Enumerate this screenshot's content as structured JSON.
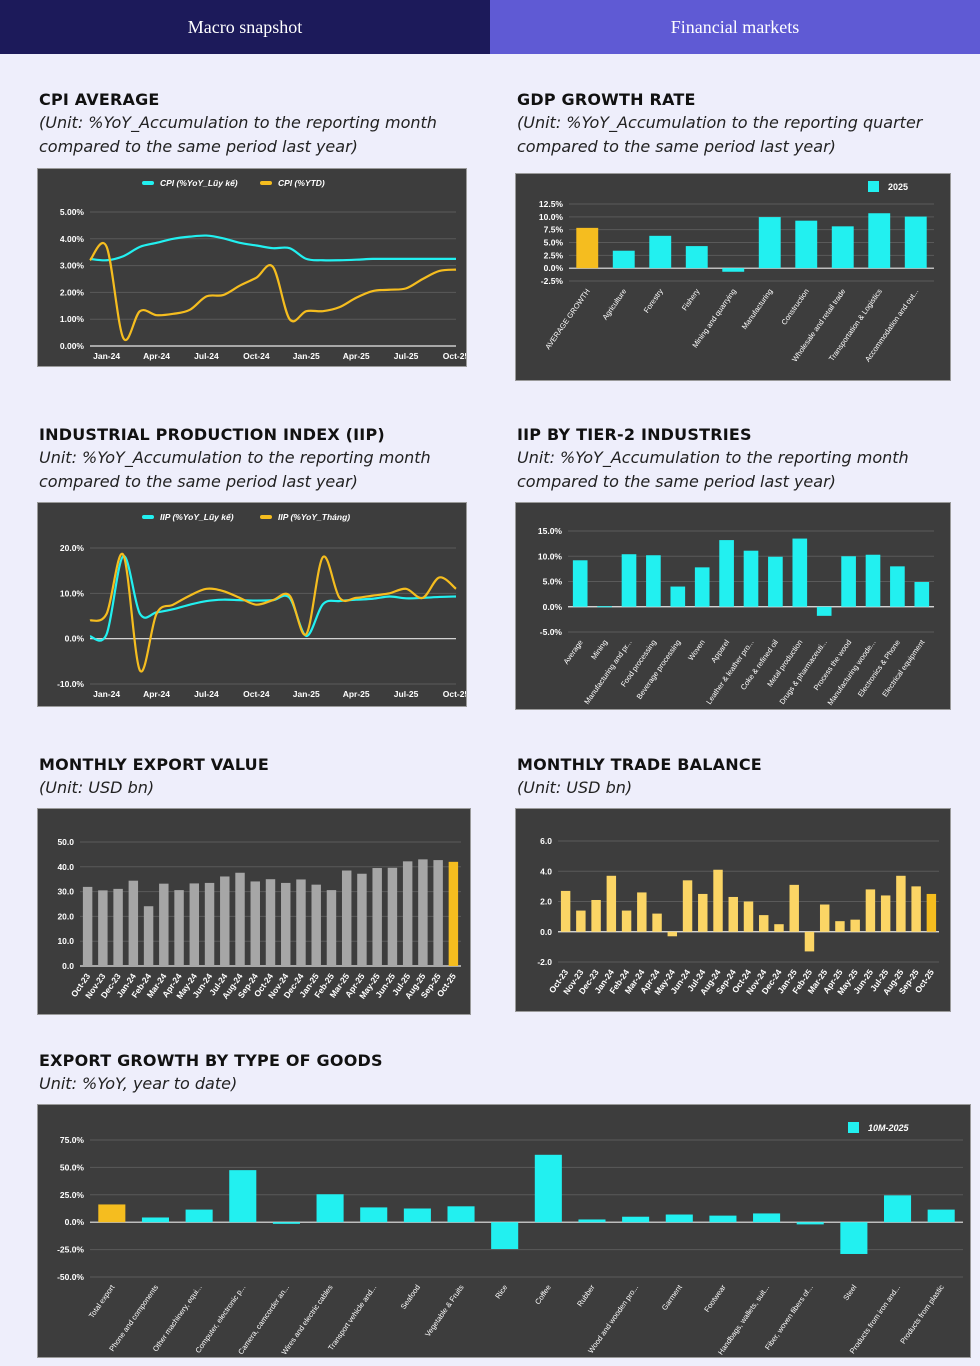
{
  "tabs": [
    {
      "label": "Macro snapshot"
    },
    {
      "label": "Financial markets"
    }
  ],
  "sections": {
    "cpi": {
      "title": "CPI AVERAGE",
      "unit": "(Unit: %YoY_Accumulation to the reporting month\ncompared to the same period last year)"
    },
    "gdp": {
      "title": "GDP GROWTH RATE",
      "unit": "(Unit: %YoY_Accumulation to the reporting quarter\ncompared to the same period last year)"
    },
    "iip": {
      "title": "INDUSTRIAL PRODUCTION INDEX (IIP)",
      "unit": "Unit: %YoY_Accumulation to the reporting month\ncompared to the same period last year)"
    },
    "iip2": {
      "title": "IIP BY TIER-2 INDUSTRIES",
      "unit": "Unit: %YoY_Accumulation to the reporting month\ncompared to the same period last year)"
    },
    "export": {
      "title": "MONTHLY EXPORT VALUE",
      "unit": "(Unit: USD bn)"
    },
    "trade": {
      "title": "MONTHLY TRADE BALANCE",
      "unit": "(Unit: USD bn)"
    },
    "goods": {
      "title": "EXPORT GROWTH BY TYPE OF GOODS",
      "unit": "Unit: %YoY, year to date)"
    }
  },
  "colors": {
    "cyan": "#22f0f0",
    "yellow": "#f5bd1f",
    "gray": "#a6a6a6",
    "lightYellow": "#fbd565",
    "panel": "#3d3d3d"
  },
  "chart_data": [
    {
      "id": "cpi",
      "type": "line",
      "x": [
        "Dec-23",
        "Jan-24",
        "Feb-24",
        "Mar-24",
        "Apr-24",
        "May-24",
        "Jun-24",
        "Jul-24",
        "Aug-24",
        "Sep-24",
        "Oct-24",
        "Nov-24",
        "Dec-24",
        "Jan-25",
        "Feb-25",
        "Mar-25",
        "Apr-25",
        "May-25",
        "Jun-25",
        "Jul-25",
        "Aug-25",
        "Sep-25",
        "Oct-25"
      ],
      "xticks": [
        "Jan-24",
        "Apr-24",
        "Jul-24",
        "Oct-24",
        "Jan-25",
        "Apr-25",
        "Jul-25",
        "Oct-25"
      ],
      "yticks": [
        "5.00%",
        "4.00%",
        "3.00%",
        "2.00%",
        "1.00%",
        "0.00%"
      ],
      "ylim": [
        0,
        5
      ],
      "series": [
        {
          "name": "CPI (%YoY_Lũy kế)",
          "color": "cyan",
          "values": [
            3.25,
            3.2,
            3.35,
            3.7,
            3.85,
            4.0,
            4.08,
            4.12,
            4.02,
            3.85,
            3.75,
            3.65,
            3.65,
            3.25,
            3.2,
            3.2,
            3.22,
            3.25,
            3.25,
            3.25,
            3.25,
            3.25,
            3.25
          ]
        },
        {
          "name": "CPI (%YTD)",
          "color": "yellow",
          "values": [
            3.2,
            3.7,
            0.3,
            1.3,
            1.15,
            1.2,
            1.35,
            1.85,
            1.9,
            2.25,
            2.55,
            2.95,
            1.0,
            1.3,
            1.3,
            1.45,
            1.8,
            2.05,
            2.1,
            2.15,
            2.5,
            2.8,
            2.85
          ]
        }
      ]
    },
    {
      "id": "gdp",
      "type": "bar",
      "categories": [
        "AVERAGE GROWTH",
        "Agriculture",
        "Forestry",
        "Fishery",
        "Mining and quarrying",
        "Manufacturing",
        "Construction",
        "Wholesale and retail trade",
        "Transportation & Logistics",
        "Accommodation and out..."
      ],
      "yticks": [
        "12.5%",
        "10.0%",
        "7.5%",
        "5.0%",
        "2.5%",
        "0.0%",
        "-2.5%"
      ],
      "ylim": [
        -2.5,
        12.5
      ],
      "legend": "2025",
      "series": [
        {
          "name": "2025",
          "values": [
            7.85,
            3.4,
            6.3,
            4.3,
            -0.7,
            9.95,
            9.25,
            8.15,
            10.7,
            10.05
          ]
        }
      ],
      "highlight": 0
    },
    {
      "id": "iip",
      "type": "line",
      "x": [
        "Dec-23",
        "Jan-24",
        "Feb-24",
        "Mar-24",
        "Apr-24",
        "May-24",
        "Jun-24",
        "Jul-24",
        "Aug-24",
        "Sep-24",
        "Oct-24",
        "Nov-24",
        "Dec-24",
        "Jan-25",
        "Feb-25",
        "Mar-25",
        "Apr-25",
        "May-25",
        "Jun-25",
        "Jul-25",
        "Aug-25",
        "Sep-25",
        "Oct-25"
      ],
      "xticks": [
        "Jan-24",
        "Apr-24",
        "Jul-24",
        "Oct-24",
        "Jan-25",
        "Apr-25",
        "Jul-25",
        "Oct-25"
      ],
      "yticks": [
        "20.0%",
        "10.0%",
        "0.0%",
        "-10.0%"
      ],
      "ylim": [
        -10,
        20
      ],
      "series": [
        {
          "name": "IIP (%YoY_Lũy kế)",
          "color": "cyan",
          "values": [
            0.5,
            1.0,
            18.2,
            5.5,
            5.8,
            6.5,
            7.5,
            8.3,
            8.6,
            8.5,
            8.4,
            8.5,
            9.0,
            0.6,
            7.6,
            8.3,
            8.6,
            8.8,
            9.3,
            8.9,
            9.0,
            9.2,
            9.3
          ]
        },
        {
          "name": "IIP (%YoY_Tháng)",
          "color": "yellow",
          "values": [
            4.0,
            5.5,
            18.5,
            -7.0,
            5.5,
            7.5,
            9.5,
            11.0,
            10.5,
            9.0,
            7.5,
            8.5,
            9.5,
            1.0,
            18.0,
            9.0,
            9.0,
            9.5,
            10.0,
            11.0,
            9.0,
            13.5,
            11.0
          ]
        }
      ]
    },
    {
      "id": "iip2",
      "type": "bar",
      "categories": [
        "Average",
        "Mining",
        "Manufacturing and pr...",
        "Food processing",
        "Beverage processing",
        "Woven",
        "Apparel",
        "Leather & leather pro...",
        "Coke & refined oil",
        "Metal production",
        "Drugs & pharmaceuti...",
        "Process the wood",
        "Manufacturing woode...",
        "Electronics & Phone",
        "Electrical equipment"
      ],
      "yticks": [
        "15.0%",
        "10.0%",
        "5.0%",
        "0.0%",
        "-5.0%"
      ],
      "ylim": [
        -5,
        15
      ],
      "series": [
        {
          "name": "2025",
          "values": [
            9.2,
            0.1,
            10.4,
            10.2,
            4.0,
            7.8,
            13.2,
            11.1,
            9.9,
            13.5,
            -1.8,
            10.0,
            10.3,
            8.0,
            4.9
          ]
        }
      ]
    },
    {
      "id": "export",
      "type": "bar",
      "categories": [
        "Oct-23",
        "Nov-23",
        "Dec-23",
        "Jan-24",
        "Feb-24",
        "Mar-24",
        "Apr-24",
        "May-24",
        "Jun-24",
        "Jul-24",
        "Aug-24",
        "Sep-24",
        "Oct-24",
        "Nov-24",
        "Dec-24",
        "Jan-25",
        "Feb-25",
        "Mar-25",
        "Apr-25",
        "May-25",
        "Jun-25",
        "Jul-25",
        "Aug-25",
        "Sep-25",
        "Oct-25"
      ],
      "yticks": [
        "50.0",
        "40.0",
        "30.0",
        "20.0",
        "10.0",
        "0.0"
      ],
      "ylim": [
        0,
        50
      ],
      "series": [
        {
          "name": "Export",
          "values": [
            31.9,
            30.5,
            31.1,
            34.4,
            24.1,
            33.2,
            30.6,
            33.3,
            33.5,
            36.1,
            37.6,
            34.1,
            35.0,
            33.5,
            34.9,
            32.8,
            30.6,
            38.5,
            37.2,
            39.5,
            39.6,
            42.2,
            43.0,
            42.7,
            42.0
          ]
        }
      ],
      "highlight": 24
    },
    {
      "id": "trade",
      "type": "bar",
      "categories": [
        "Oct-23",
        "Nov-23",
        "Dec-23",
        "Jan-24",
        "Feb-24",
        "Mar-24",
        "Apr-24",
        "May-24",
        "Jun-24",
        "Jul-24",
        "Aug-24",
        "Sep-24",
        "Oct-24",
        "Nov-24",
        "Dec-24",
        "Jan-25",
        "Feb-25",
        "Mar-25",
        "Apr-25",
        "May-25",
        "Jun-25",
        "Jul-25",
        "Aug-25",
        "Sep-25",
        "Oct-25"
      ],
      "yticks": [
        "6.0",
        "4.0",
        "2.0",
        "0.0",
        "-2.0"
      ],
      "ylim": [
        -2,
        6
      ],
      "series": [
        {
          "name": "Balance",
          "values": [
            2.7,
            1.4,
            2.1,
            3.7,
            1.4,
            2.6,
            1.2,
            -0.3,
            3.4,
            2.5,
            4.1,
            2.3,
            2.0,
            1.1,
            0.5,
            3.1,
            -1.3,
            1.8,
            0.7,
            0.8,
            2.8,
            2.4,
            3.7,
            3.0,
            2.5
          ]
        }
      ],
      "highlight": 24
    },
    {
      "id": "goods",
      "type": "bar",
      "categories": [
        "Total export",
        "Phone and components",
        "Other machinery, equi...",
        "Computer, electronic p...",
        "Camera, camcorder an...",
        "Wires and electric cables",
        "Transport vehicle and...",
        "Seafood",
        "Vegetable & Fruits",
        "Rice",
        "Coffee",
        "Rubber",
        "Wood and wooden pro...",
        "Garment",
        "Footwear",
        "Handbags, wallets, suit...",
        "Fiber, woven fibers of...",
        "Steel",
        "Products from iron and...",
        "Products from plastic"
      ],
      "yticks": [
        "75.0%",
        "50.0%",
        "25.0%",
        "0.0%",
        "-25.0%",
        "-50.0%"
      ],
      "ylim": [
        -50,
        75
      ],
      "legend": "10M-2025",
      "series": [
        {
          "name": "10M-2025",
          "values": [
            16.2,
            4.3,
            11.5,
            47.5,
            -1.5,
            25.5,
            13.5,
            12.5,
            14.5,
            -24.5,
            61.5,
            2.5,
            5.0,
            7.0,
            6.0,
            8.0,
            -2.0,
            -29.0,
            24.5,
            11.5
          ]
        }
      ],
      "highlight": 0
    }
  ]
}
